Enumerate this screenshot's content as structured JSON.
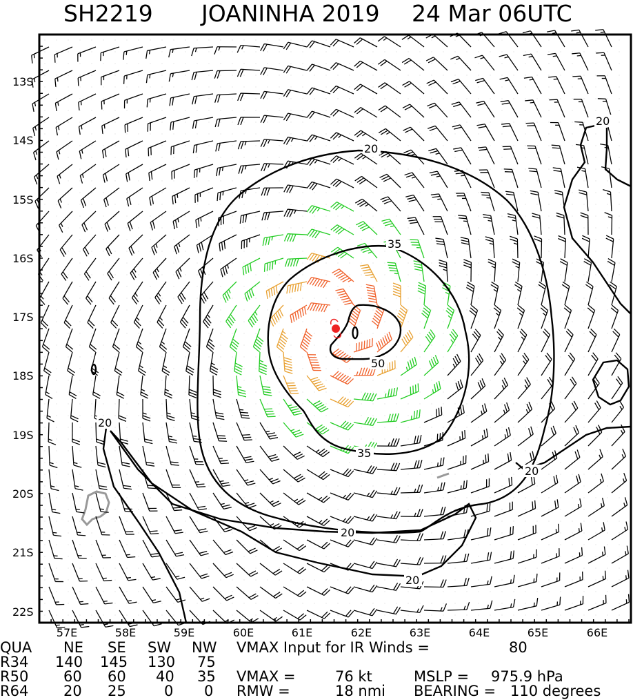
{
  "title": {
    "storm_id": "SH2219",
    "storm_name_year": "JOANINHA 2019",
    "date_time": "24 Mar 06UTC"
  },
  "map": {
    "lat_labels": [
      "13S",
      "14S",
      "15S",
      "16S",
      "17S",
      "18S",
      "19S",
      "20S",
      "21S",
      "22S"
    ],
    "lon_labels": [
      "57E",
      "58E",
      "59E",
      "60E",
      "61E",
      "62E",
      "63E",
      "64E",
      "65E",
      "66E"
    ],
    "contour_labels": {
      "c20": "20",
      "c35": "35",
      "c50": "50"
    },
    "colors": {
      "barb_under_34": "#000000",
      "barb_34_to_49": "#22cc22",
      "barb_50_to_63": "#e8a030",
      "barb_64_plus": "#f0602a",
      "land_outline": "#999999",
      "center_marker": "#ee2222",
      "contour": "#000000"
    },
    "center_icon": "storm-center-icon"
  },
  "table": {
    "header": [
      "QUA",
      "NE",
      "SE",
      "SW",
      "NW"
    ],
    "rows": [
      {
        "label": "R34",
        "values": [
          "140",
          "145",
          "130",
          "75"
        ]
      },
      {
        "label": "R50",
        "values": [
          "60",
          "60",
          "40",
          "35"
        ]
      },
      {
        "label": "R64",
        "values": [
          "20",
          "25",
          "0",
          "0"
        ]
      }
    ],
    "line1": {
      "text": "VMAX Input for IR Winds =",
      "value": "80"
    },
    "line2": {
      "vmax_label": "VMAX =",
      "vmax_value": "76 kt",
      "mslp_label": "MSLP =",
      "mslp_value": "975.9 hPa"
    },
    "line3": {
      "rmw_label": "RMW =",
      "rmw_value": "18 nmi",
      "bearing_label": "BEARING =",
      "bearing_value": "110 degrees"
    }
  }
}
